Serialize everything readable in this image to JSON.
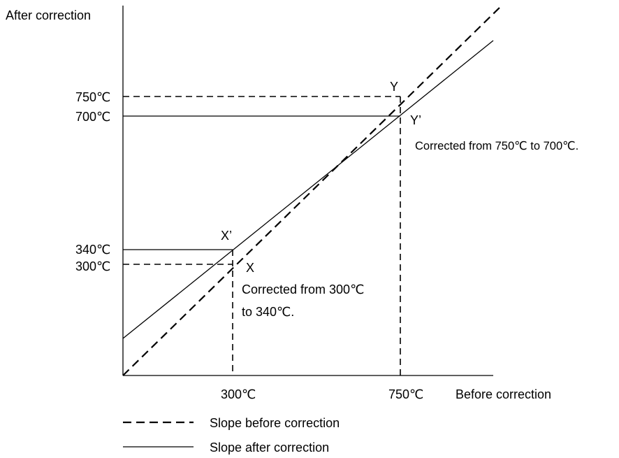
{
  "axes": {
    "y_title": "After correction",
    "x_title": "Before correction"
  },
  "y_ticks": {
    "t750": "750℃",
    "t700": "700℃",
    "t340": "340℃",
    "t300": "300℃"
  },
  "x_ticks": {
    "t300": "300℃",
    "t750": "750℃"
  },
  "points": {
    "y": "Y",
    "y_prime": "Y’",
    "x": "X",
    "x_prime": "X’"
  },
  "annotations": {
    "upper": "Corrected from 750℃  to 700℃.",
    "lower_line1": "Corrected from 300℃",
    "lower_line2": "to 340℃."
  },
  "legend": {
    "dashed": "Slope before correction",
    "solid": "Slope after correction"
  }
}
